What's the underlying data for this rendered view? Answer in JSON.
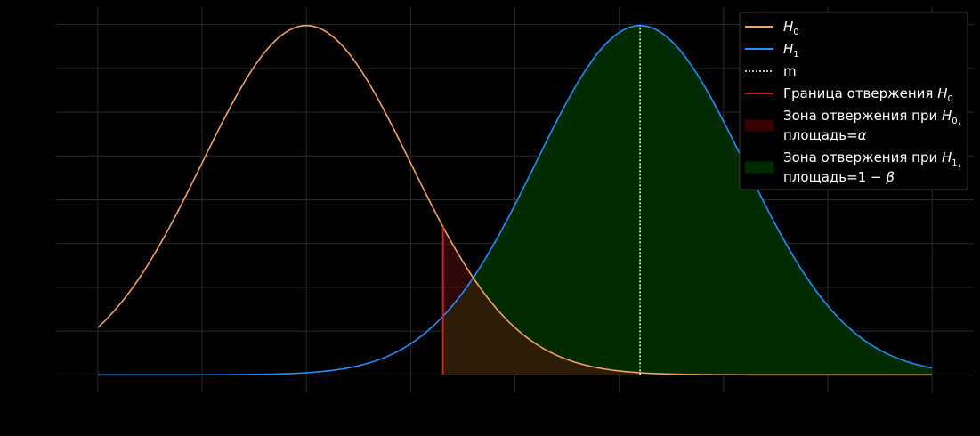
{
  "chart_data": {
    "type": "line",
    "title": "",
    "xlabel": "",
    "ylabel": "",
    "xlim": [
      -2.4,
      6.4
    ],
    "ylim": [
      -0.02,
      0.42
    ],
    "grid": true,
    "legend_placement": "top-right",
    "series": [
      {
        "name": "H0",
        "distribution": "normal",
        "mean": 0,
        "std": 1,
        "x_range": [
          -2,
          6
        ],
        "color": "#f4a261"
      },
      {
        "name": "H1",
        "distribution": "normal",
        "mean": 3.2,
        "std": 1,
        "x_range": [
          -2,
          6
        ],
        "color": "#1e90ff"
      }
    ],
    "m": 3.2,
    "critical_value": 1.31,
    "rejection_zone_H0": {
      "from": 1.31,
      "to": 6,
      "fill": "#3a0000"
    },
    "rejection_zone_H1": {
      "from": 1.31,
      "to": 6,
      "fill": "#002a00"
    },
    "legend": [
      {
        "key": "h0",
        "type": "line",
        "color": "#f4a261",
        "lines": [
          [
            {
              "t": "H",
              "it": true
            },
            {
              "t": "0",
              "sub": true
            }
          ]
        ]
      },
      {
        "key": "h1",
        "type": "line",
        "color": "#1e90ff",
        "lines": [
          [
            {
              "t": "H",
              "it": true
            },
            {
              "t": "1",
              "sub": true
            }
          ]
        ]
      },
      {
        "key": "m",
        "type": "dotted",
        "color": "#ffffff",
        "lines": [
          [
            {
              "t": "m"
            }
          ]
        ]
      },
      {
        "key": "boundary",
        "type": "line",
        "color": "#cc2020",
        "lines": [
          [
            {
              "t": "Граница отвержения "
            },
            {
              "t": "H",
              "it": true
            },
            {
              "t": "0",
              "sub": true
            }
          ]
        ]
      },
      {
        "key": "zone_h0",
        "type": "patch",
        "color": "#3a0000",
        "lines": [
          [
            {
              "t": "Зона отвержения при "
            },
            {
              "t": "H",
              "it": true
            },
            {
              "t": "0",
              "sub": true
            },
            {
              "t": ","
            }
          ],
          [
            {
              "t": "площадь="
            },
            {
              "t": "α",
              "it": true
            }
          ]
        ]
      },
      {
        "key": "zone_h1",
        "type": "patch",
        "color": "#002a00",
        "lines": [
          [
            {
              "t": "Зона отвержения при "
            },
            {
              "t": "H",
              "it": true
            },
            {
              "t": "1",
              "sub": true
            },
            {
              "t": ","
            }
          ],
          [
            {
              "t": "площадь=1 − "
            },
            {
              "t": "β",
              "it": true
            }
          ]
        ]
      }
    ]
  }
}
